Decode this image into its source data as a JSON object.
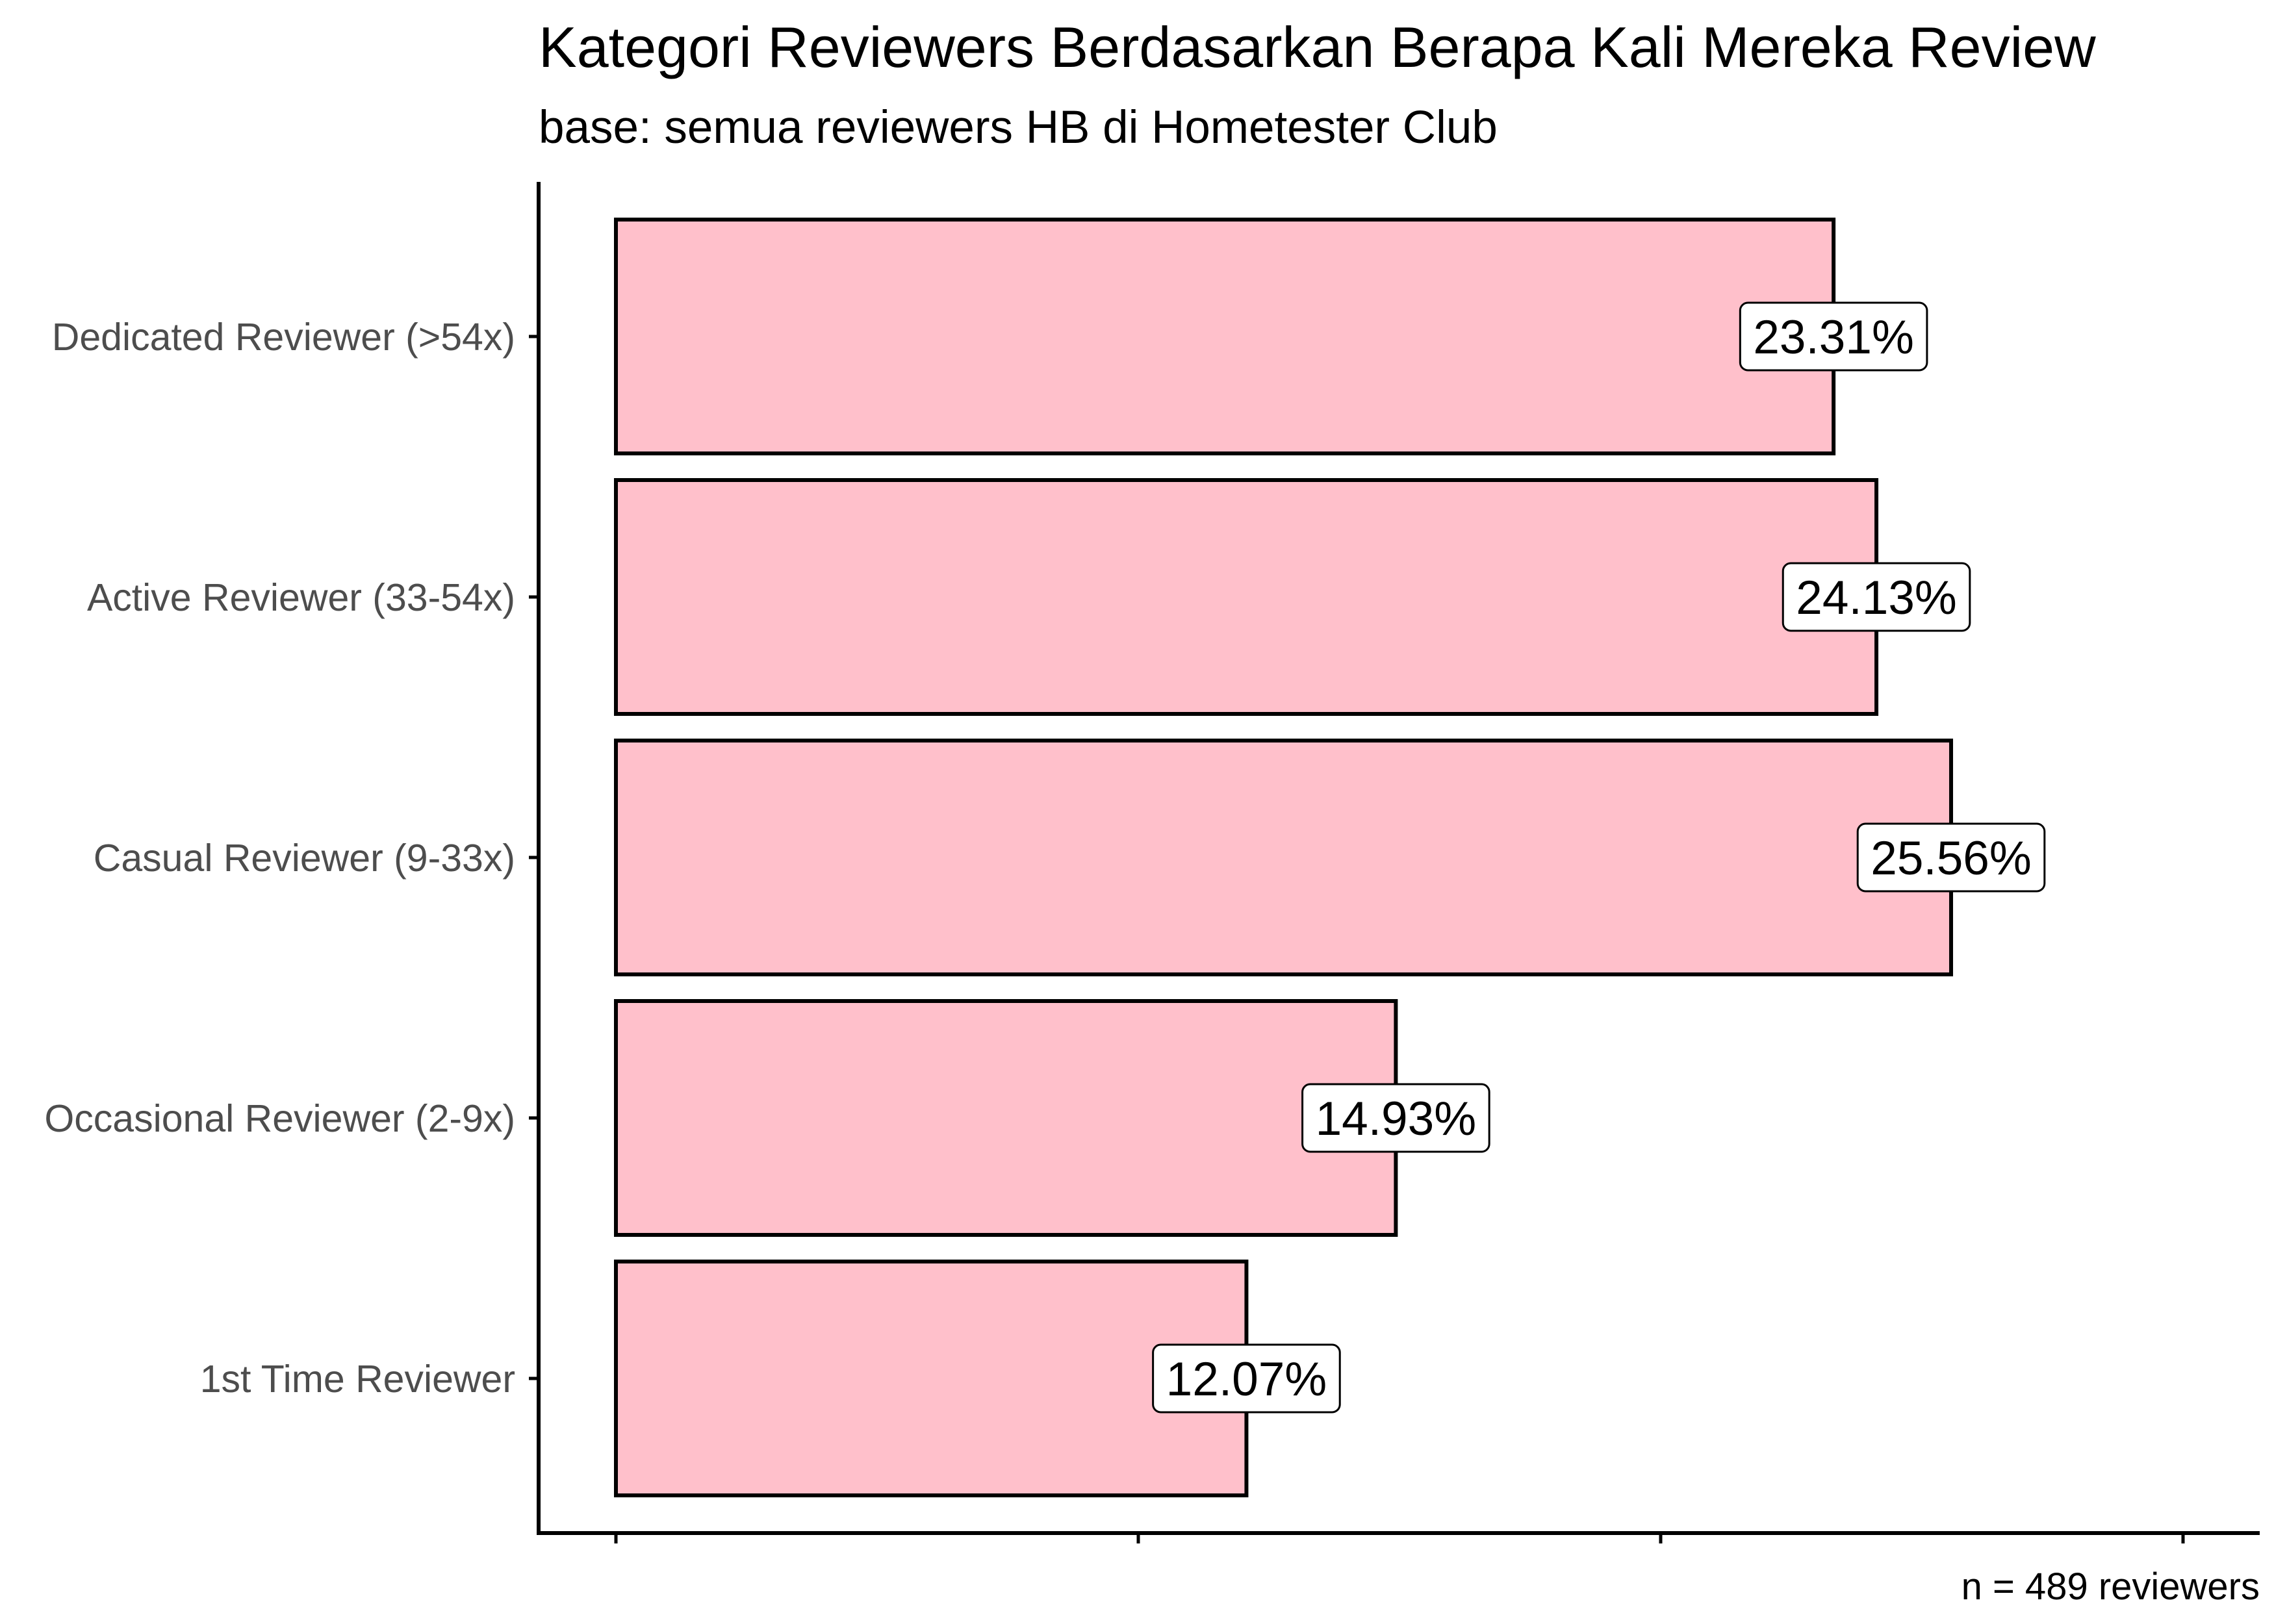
{
  "chart_data": {
    "type": "bar",
    "orientation": "horizontal",
    "title": "Kategori Reviewers Berdasarkan Berapa Kali Mereka Review",
    "subtitle": "base: semua reviewers HB di Hometester Club",
    "caption": "n = 489 reviewers",
    "xlabel": "",
    "ylabel": "",
    "categories": [
      "Dedicated Reviewer (>54x)",
      "Active Reviewer (33-54x)",
      "Casual Reviewer (9-33x)",
      "Occasional Reviewer (2-9x)",
      "1st Time Reviewer"
    ],
    "values": [
      23.31,
      24.13,
      25.56,
      14.93,
      12.07
    ],
    "labels": [
      "23.31%",
      "24.13%",
      "25.56%",
      "14.93%",
      "12.07%"
    ],
    "xlim": [
      0,
      30
    ],
    "x_ticks": [
      0,
      10,
      20,
      30
    ],
    "x_tick_labels_shown": false,
    "grid": false,
    "legend": "none",
    "colors": {
      "bar_fill": "#ffc0cb",
      "bar_stroke": "#000000",
      "label_fill": "#ffffff",
      "axis": "#000000"
    }
  }
}
